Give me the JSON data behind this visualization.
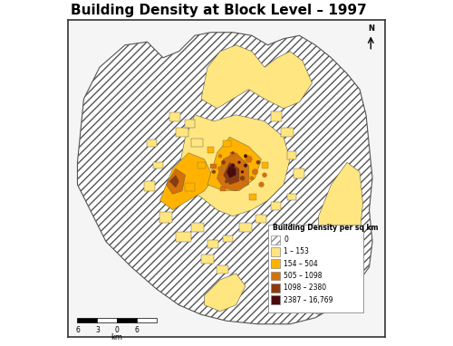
{
  "title": "Building Density at Block Level – 1997",
  "title_fontsize": 11,
  "background_color": "#ffffff",
  "legend_title": "Building Density per sq km",
  "legend_entries": [
    {
      "label": "0",
      "color": "white",
      "hatch": "////"
    },
    {
      "label": "1 – 153",
      "color": "#FFE680"
    },
    {
      "label": "154 – 504",
      "color": "#FFB300"
    },
    {
      "label": "505 – 1098",
      "color": "#D4720A"
    },
    {
      "label": "1098 – 2380",
      "color": "#8B3A0F"
    },
    {
      "label": "2387 – 16,769",
      "color": "#4A0A0A"
    }
  ],
  "scalebar_label": "km",
  "fig_width": 5.0,
  "fig_height": 3.82,
  "c1": "#FFE680",
  "c2": "#FFB300",
  "c3": "#D4720A",
  "c4": "#8B3A0F",
  "c5": "#4A0A0A"
}
